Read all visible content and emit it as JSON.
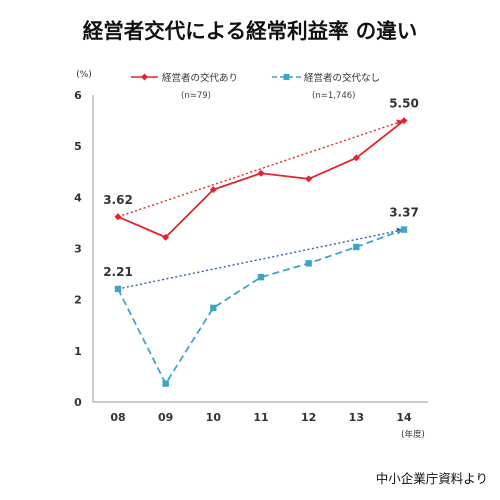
{
  "chart_data": {
    "type": "line",
    "title": "経営者交代による経常利益率 の違い",
    "ylabel": "(%)",
    "xlabel": "",
    "x_unit_label": "(年度)",
    "categories": [
      "08",
      "09",
      "10",
      "11",
      "12",
      "13",
      "14"
    ],
    "ylim": [
      0,
      6
    ],
    "yticks": [
      "0",
      "1",
      "2",
      "3",
      "4",
      "5",
      "6"
    ],
    "grid": false,
    "legend_position": "top",
    "series": [
      {
        "name": "経営者の交代あり",
        "n_label": "(n=79)",
        "values": [
          3.62,
          3.22,
          4.15,
          4.47,
          4.36,
          4.77,
          5.5
        ],
        "color": "#e8232b",
        "style": "solid",
        "marker": "diamond"
      },
      {
        "name": "経営者の交代なし",
        "n_label": "(n=1,746)",
        "values": [
          2.21,
          0.36,
          1.84,
          2.44,
          2.71,
          3.03,
          3.37
        ],
        "color": "#3da4c8",
        "style": "dashed",
        "marker": "square"
      }
    ],
    "trend_lines": [
      {
        "series": 0,
        "from": "08",
        "to": "14",
        "color": "#e8232b",
        "style": "dotted"
      },
      {
        "series": 1,
        "from": "08",
        "to": "14",
        "color": "#2f5fa8",
        "style": "dotted"
      }
    ],
    "annotations": [
      {
        "text": "3.62",
        "series": 0,
        "at": "08"
      },
      {
        "text": "5.50",
        "series": 0,
        "at": "14"
      },
      {
        "text": "2.21",
        "series": 1,
        "at": "08"
      },
      {
        "text": "3.37",
        "series": 1,
        "at": "14"
      }
    ],
    "source": "中小企業庁資料より"
  }
}
